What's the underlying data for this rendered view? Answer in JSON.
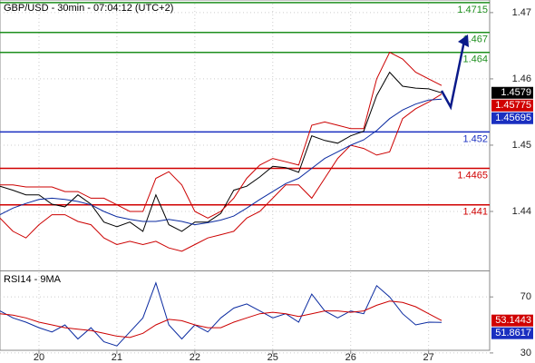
{
  "chart_data": [
    {
      "type": "line",
      "title": "GBP/USD - 30min - 07:04:12 (UTC+2)",
      "x": [
        0,
        1,
        2,
        3,
        4,
        5,
        6,
        7,
        8,
        9,
        10,
        11,
        12,
        13,
        14,
        15,
        16,
        17,
        18,
        19,
        20,
        21,
        22,
        23,
        24,
        25,
        26,
        27,
        28,
        29,
        30,
        31,
        32,
        33,
        34
      ],
      "series": [
        {
          "color": "#000000",
          "values": [
            1.4438,
            1.4432,
            1.4425,
            1.4425,
            1.4411,
            1.4407,
            1.4425,
            1.4411,
            1.4384,
            1.4377,
            1.4384,
            1.437,
            1.4425,
            1.438,
            1.437,
            1.4384,
            1.4384,
            1.4397,
            1.4432,
            1.4438,
            1.4452,
            1.4468,
            1.4466,
            1.4459,
            1.4514,
            1.4507,
            1.4503,
            1.4514,
            1.4521,
            1.4575,
            1.461,
            1.4589,
            1.4586,
            1.4585,
            1.4579
          ]
        },
        {
          "color": "#cc0000",
          "values": [
            1.444,
            1.444,
            1.4437,
            1.4437,
            1.4437,
            1.443,
            1.443,
            1.442,
            1.442,
            1.441,
            1.44,
            1.44,
            1.445,
            1.446,
            1.444,
            1.44,
            1.439,
            1.44,
            1.442,
            1.445,
            1.447,
            1.448,
            1.4475,
            1.447,
            1.453,
            1.4535,
            1.453,
            1.4525,
            1.4525,
            1.46,
            1.464,
            1.463,
            1.461,
            1.46,
            1.459
          ]
        },
        {
          "color": "#cc0000",
          "values": [
            1.439,
            1.437,
            1.436,
            1.438,
            1.4395,
            1.4395,
            1.4385,
            1.438,
            1.436,
            1.435,
            1.4355,
            1.435,
            1.4355,
            1.4345,
            1.434,
            1.435,
            1.436,
            1.4365,
            1.437,
            1.439,
            1.44,
            1.442,
            1.444,
            1.444,
            1.442,
            1.445,
            1.448,
            1.45,
            1.4495,
            1.4485,
            1.449,
            1.454,
            1.4555,
            1.4565,
            1.4577
          ]
        },
        {
          "color": "#0a2aa0",
          "values": [
            1.4395,
            1.4405,
            1.4412,
            1.4418,
            1.442,
            1.4418,
            1.4415,
            1.441,
            1.44,
            1.4392,
            1.4388,
            1.4385,
            1.4385,
            1.4388,
            1.4385,
            1.438,
            1.4383,
            1.4387,
            1.4393,
            1.4405,
            1.4418,
            1.443,
            1.4442,
            1.445,
            1.4465,
            1.448,
            1.449,
            1.45,
            1.4508,
            1.4522,
            1.454,
            1.4553,
            1.4562,
            1.4568,
            1.45695
          ]
        }
      ],
      "xlim": [
        0,
        37.7
      ],
      "ylim": [
        1.4311,
        1.4719
      ],
      "yticks": [
        1.47,
        1.46,
        1.45,
        1.44
      ],
      "grid": true,
      "levels": [
        {
          "value": 1.4715,
          "color": "#1f8f1f"
        },
        {
          "value": 1.467,
          "color": "#1f8f1f"
        },
        {
          "value": 1.464,
          "color": "#1f8f1f"
        },
        {
          "value": 1.452,
          "color": "#1a2fc0"
        },
        {
          "value": 1.4465,
          "color": "#d00000"
        },
        {
          "value": 1.441,
          "color": "#d00000"
        }
      ],
      "last_values": [
        {
          "value": 1.4579,
          "color": "#000000"
        },
        {
          "value": 1.45775,
          "color": "#d00000"
        },
        {
          "value": 1.45695,
          "color": "#1a2fc0"
        }
      ]
    },
    {
      "type": "line",
      "title": "RSI14 - 9MA",
      "x": [
        0,
        1,
        2,
        3,
        4,
        5,
        6,
        7,
        8,
        9,
        10,
        11,
        12,
        13,
        14,
        15,
        16,
        17,
        18,
        19,
        20,
        21,
        22,
        23,
        24,
        25,
        26,
        27,
        28,
        29,
        30,
        31,
        32,
        33,
        34
      ],
      "series": [
        {
          "color": "#0a2aa0",
          "values": [
            60,
            55,
            52,
            48,
            45,
            50,
            40,
            48,
            38,
            35,
            45,
            55,
            80,
            50,
            40,
            50,
            45,
            55,
            62,
            65,
            60,
            55,
            58,
            52,
            72,
            60,
            55,
            60,
            58,
            78,
            70,
            58,
            50,
            52,
            51.8617
          ]
        },
        {
          "color": "#cc0000",
          "values": [
            58,
            57,
            55,
            52,
            50,
            48,
            47,
            46,
            44,
            42,
            41,
            44,
            50,
            54,
            53,
            50,
            48,
            48,
            52,
            55,
            58,
            59,
            58,
            56,
            58,
            60,
            60,
            59,
            60,
            64,
            67,
            66,
            63,
            58,
            53.1443
          ]
        }
      ],
      "xlim": [
        0,
        37.7
      ],
      "ylim": [
        28,
        87.6
      ],
      "yticks": [
        70,
        30
      ],
      "grid": true,
      "xticks": [
        {
          "value": 3,
          "label": "20"
        },
        {
          "value": 9,
          "label": "21"
        },
        {
          "value": 15,
          "label": "22"
        },
        {
          "value": 21,
          "label": "25"
        },
        {
          "value": 27,
          "label": "26"
        },
        {
          "value": 33,
          "label": "27"
        }
      ],
      "last_values": [
        {
          "value": 53.1443,
          "color": "#d00000"
        },
        {
          "value": 51.8617,
          "color": "#1a2fc0"
        }
      ]
    }
  ]
}
